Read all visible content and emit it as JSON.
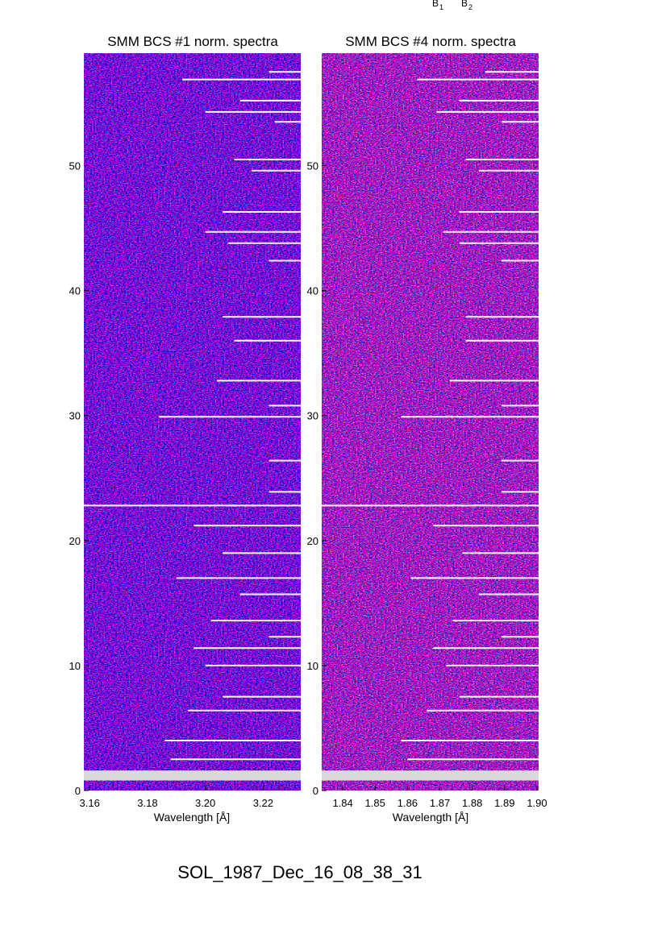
{
  "header_markers": [
    "B",
    "B"
  ],
  "header_marker_subscripts": [
    "1",
    "2"
  ],
  "footer_label": "SOL_1987_Dec_16_08_38_31",
  "colors": {
    "background": "#0d0221",
    "blue": "#3a1bd9",
    "red": "#e0251e",
    "orange": "#ff8a2a",
    "white_line": "#ffffff",
    "gap_band": "#d9d9d9"
  },
  "chart_data": [
    {
      "type": "heatmap",
      "title": "SMM BCS #1 norm. spectra",
      "xlabel": "Wavelength [Å]",
      "ylabel": "",
      "xlim": [
        3.158,
        3.233
      ],
      "ylim": [
        0,
        59
      ],
      "xticks": [
        3.16,
        3.18,
        3.2,
        3.22
      ],
      "xtick_labels": [
        "3.16",
        "3.18",
        "3.20",
        "3.22"
      ],
      "yticks": [
        0,
        10,
        20,
        30,
        40,
        50
      ],
      "ytick_labels": [
        "0",
        "10",
        "20",
        "30",
        "40",
        "50"
      ],
      "gap_band_y": [
        0.8,
        1.6
      ],
      "full_width_line_y": 22.8,
      "saturated_rows": [
        {
          "y": 57.5,
          "x_start": 3.222
        },
        {
          "y": 56.9,
          "x_start": 3.192
        },
        {
          "y": 55.2,
          "x_start": 3.212
        },
        {
          "y": 54.3,
          "x_start": 3.2
        },
        {
          "y": 53.5,
          "x_start": 3.224
        },
        {
          "y": 50.5,
          "x_start": 3.21
        },
        {
          "y": 49.6,
          "x_start": 3.216
        },
        {
          "y": 46.3,
          "x_start": 3.206
        },
        {
          "y": 44.7,
          "x_start": 3.2
        },
        {
          "y": 43.8,
          "x_start": 3.208
        },
        {
          "y": 42.4,
          "x_start": 3.222
        },
        {
          "y": 37.9,
          "x_start": 3.206
        },
        {
          "y": 36.0,
          "x_start": 3.21
        },
        {
          "y": 32.8,
          "x_start": 3.204
        },
        {
          "y": 30.8,
          "x_start": 3.222
        },
        {
          "y": 29.9,
          "x_start": 3.184
        },
        {
          "y": 26.4,
          "x_start": 3.222
        },
        {
          "y": 23.9,
          "x_start": 3.222
        },
        {
          "y": 21.2,
          "x_start": 3.196
        },
        {
          "y": 19.0,
          "x_start": 3.206
        },
        {
          "y": 17.0,
          "x_start": 3.19
        },
        {
          "y": 15.7,
          "x_start": 3.212
        },
        {
          "y": 13.6,
          "x_start": 3.202
        },
        {
          "y": 12.3,
          "x_start": 3.222
        },
        {
          "y": 11.4,
          "x_start": 3.196
        },
        {
          "y": 10.0,
          "x_start": 3.2
        },
        {
          "y": 7.5,
          "x_start": 3.206
        },
        {
          "y": 6.4,
          "x_start": 3.194
        },
        {
          "y": 4.0,
          "x_start": 3.186
        },
        {
          "y": 2.5,
          "x_start": 3.188
        }
      ]
    },
    {
      "type": "heatmap",
      "title": "SMM BCS #4 norm. spectra",
      "xlabel": "Wavelength [Å]",
      "ylabel": "",
      "xlim": [
        1.8335,
        1.9005
      ],
      "ylim": [
        0,
        59
      ],
      "xticks": [
        1.84,
        1.85,
        1.86,
        1.87,
        1.88,
        1.89,
        1.9
      ],
      "xtick_labels": [
        "1.84",
        "1.85",
        "1.86",
        "1.87",
        "1.88",
        "1.89",
        "1.90"
      ],
      "yticks": [
        0,
        10,
        20,
        30,
        40,
        50
      ],
      "ytick_labels": [
        "0",
        "10",
        "20",
        "30",
        "40",
        "50"
      ],
      "gap_band_y": [
        0.8,
        1.6
      ],
      "full_width_line_y": 22.8,
      "saturated_rows": [
        {
          "y": 57.5,
          "x_start": 1.884
        },
        {
          "y": 56.9,
          "x_start": 1.863
        },
        {
          "y": 55.2,
          "x_start": 1.876
        },
        {
          "y": 54.3,
          "x_start": 1.869
        },
        {
          "y": 53.5,
          "x_start": 1.889
        },
        {
          "y": 50.5,
          "x_start": 1.878
        },
        {
          "y": 49.6,
          "x_start": 1.882
        },
        {
          "y": 46.3,
          "x_start": 1.876
        },
        {
          "y": 44.7,
          "x_start": 1.871
        },
        {
          "y": 43.8,
          "x_start": 1.876
        },
        {
          "y": 42.4,
          "x_start": 1.889
        },
        {
          "y": 37.9,
          "x_start": 1.878
        },
        {
          "y": 36.0,
          "x_start": 1.878
        },
        {
          "y": 32.8,
          "x_start": 1.873
        },
        {
          "y": 30.8,
          "x_start": 1.889
        },
        {
          "y": 29.9,
          "x_start": 1.858
        },
        {
          "y": 26.4,
          "x_start": 1.889
        },
        {
          "y": 23.9,
          "x_start": 1.889
        },
        {
          "y": 21.2,
          "x_start": 1.868
        },
        {
          "y": 19.0,
          "x_start": 1.877
        },
        {
          "y": 17.0,
          "x_start": 1.861
        },
        {
          "y": 15.7,
          "x_start": 1.882
        },
        {
          "y": 13.6,
          "x_start": 1.874
        },
        {
          "y": 12.3,
          "x_start": 1.889
        },
        {
          "y": 11.4,
          "x_start": 1.868
        },
        {
          "y": 10.0,
          "x_start": 1.872
        },
        {
          "y": 7.5,
          "x_start": 1.876
        },
        {
          "y": 6.4,
          "x_start": 1.866
        },
        {
          "y": 4.0,
          "x_start": 1.858
        },
        {
          "y": 2.5,
          "x_start": 1.86
        }
      ]
    }
  ]
}
